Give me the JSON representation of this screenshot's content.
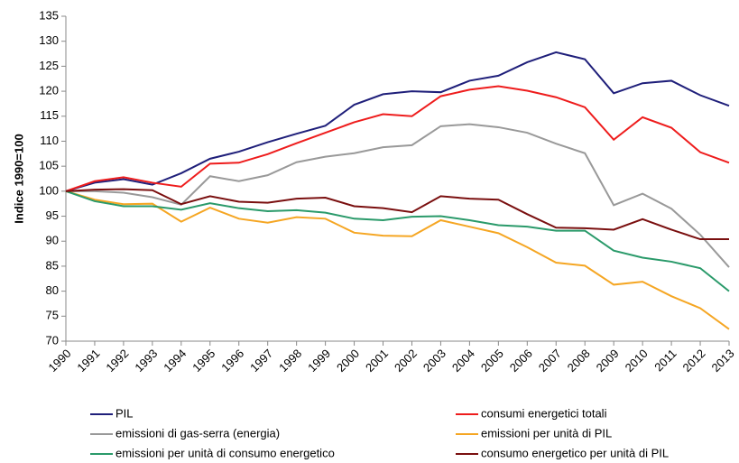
{
  "chart_data": {
    "type": "line",
    "y_label": "Indice 1990=100",
    "categories": [
      "1990",
      "1991",
      "1992",
      "1993",
      "1994",
      "1995",
      "1996",
      "1997",
      "1998",
      "1999",
      "2000",
      "2001",
      "2002",
      "2003",
      "2004",
      "2005",
      "2006",
      "2007",
      "2008",
      "2009",
      "2010",
      "2011",
      "2012",
      "2013"
    ],
    "series": [
      {
        "name": "PIL",
        "color": "#1f1f7a",
        "values": [
          100,
          101.7,
          102.4,
          101.3,
          103.6,
          106.5,
          107.9,
          109.8,
          111.5,
          113.1,
          117.3,
          119.4,
          120.0,
          119.8,
          122.1,
          123.1,
          125.8,
          127.8,
          126.4,
          119.6,
          121.6,
          122.1,
          119.2,
          117.1
        ]
      },
      {
        "name": "consumi energetici totali",
        "color": "#ee1c1c",
        "values": [
          100,
          102.0,
          102.8,
          101.7,
          100.9,
          105.5,
          105.7,
          107.4,
          109.6,
          111.7,
          113.8,
          115.4,
          115.0,
          119.0,
          120.3,
          121.0,
          120.1,
          118.8,
          116.8,
          110.3,
          114.8,
          112.7,
          107.8,
          105.7
        ]
      },
      {
        "name": "emissioni di gas-serra (energia)",
        "color": "#999999",
        "values": [
          100,
          100.0,
          99.7,
          98.8,
          97.3,
          103.0,
          102.0,
          103.2,
          105.8,
          106.9,
          107.6,
          108.8,
          109.2,
          113.0,
          113.4,
          112.8,
          111.7,
          109.5,
          107.6,
          97.2,
          99.5,
          96.5,
          91.3,
          84.8
        ]
      },
      {
        "name": "emissioni per unità di PIL",
        "color": "#f5a623",
        "values": [
          100,
          98.3,
          97.4,
          97.5,
          93.9,
          96.7,
          94.5,
          93.7,
          94.8,
          94.5,
          91.7,
          91.1,
          91.0,
          94.2,
          92.9,
          91.6,
          88.8,
          85.7,
          85.1,
          81.3,
          81.9,
          79.0,
          76.6,
          72.4
        ]
      },
      {
        "name": "emissioni per unità di consumo energetico",
        "color": "#2a9a6a",
        "values": [
          100,
          98.0,
          97.0,
          97.0,
          96.3,
          97.6,
          96.6,
          96.0,
          96.2,
          95.7,
          94.5,
          94.2,
          94.9,
          95.0,
          94.2,
          93.2,
          92.9,
          92.1,
          92.1,
          88.1,
          86.7,
          85.9,
          84.6,
          80.0
        ]
      },
      {
        "name": "consumo energetico per unità di PIL",
        "color": "#7a0f0f",
        "values": [
          100,
          100.3,
          100.4,
          100.2,
          97.4,
          99.0,
          97.9,
          97.7,
          98.5,
          98.7,
          97.0,
          96.6,
          95.8,
          99.0,
          98.5,
          98.3,
          95.4,
          92.7,
          92.6,
          92.3,
          94.4,
          92.3,
          90.4,
          90.4
        ]
      }
    ],
    "ylim": [
      70,
      135
    ],
    "yticks": [
      70,
      75,
      80,
      85,
      90,
      95,
      100,
      105,
      110,
      115,
      120,
      125,
      130,
      135
    ],
    "grid": false
  }
}
